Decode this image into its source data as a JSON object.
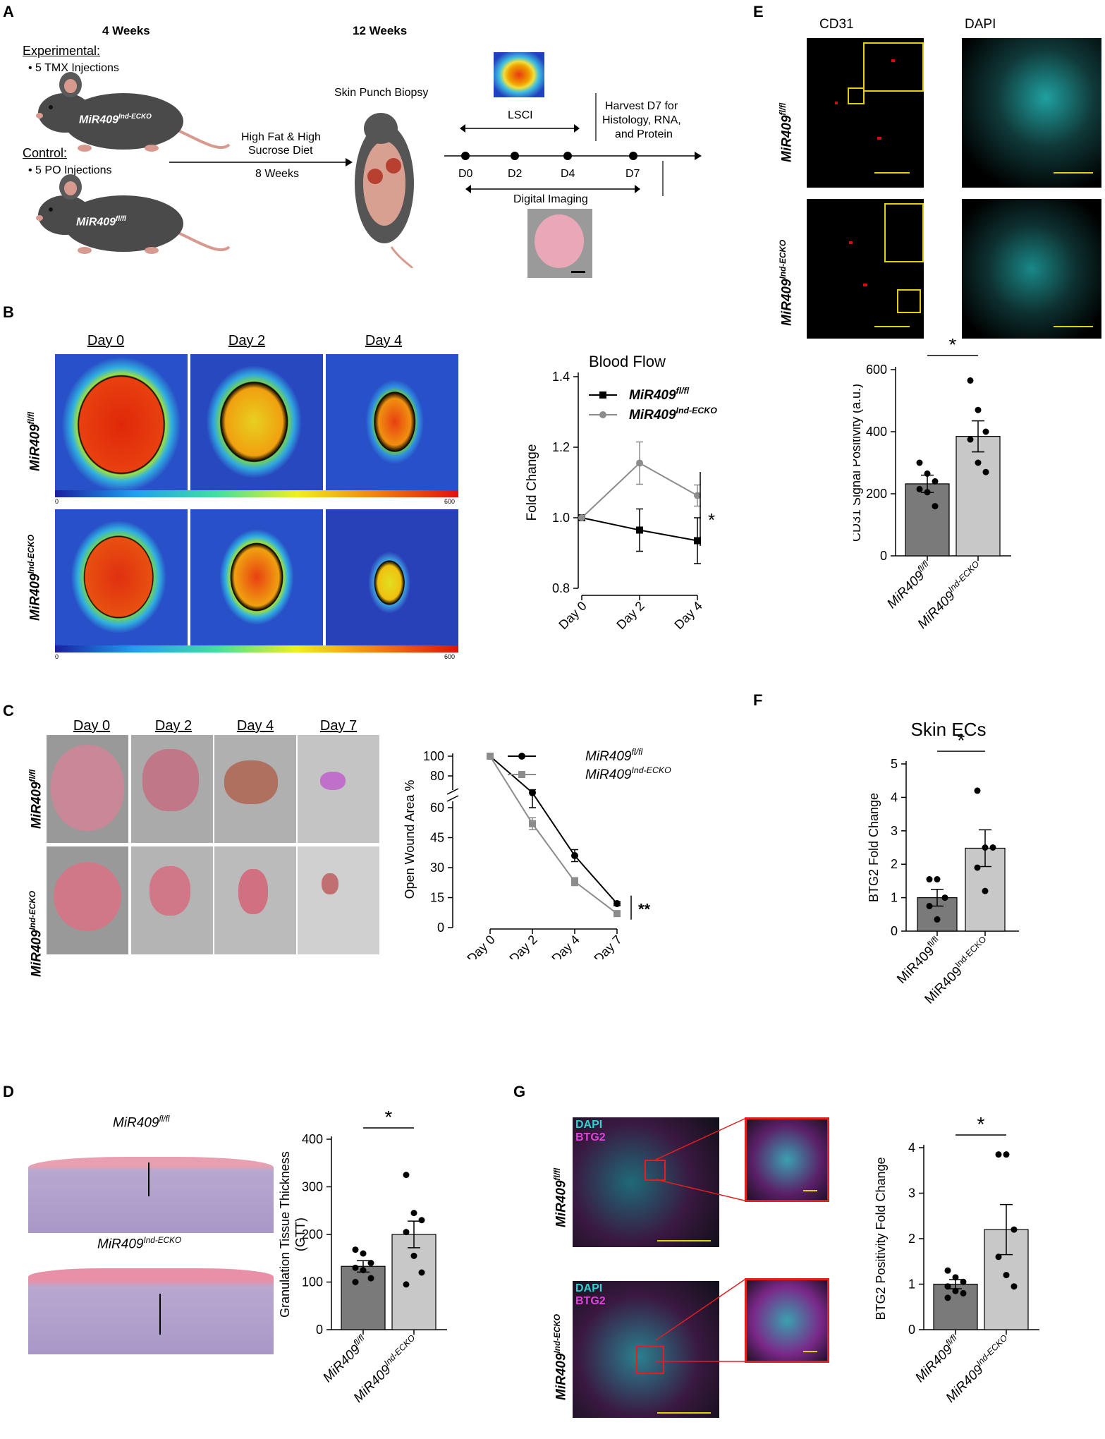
{
  "panels": {
    "A": "A",
    "B": "B",
    "C": "C",
    "D": "D",
    "E": "E",
    "F": "F",
    "G": "G"
  },
  "panelA": {
    "week4": "4 Weeks",
    "week12": "12 Weeks",
    "experimental": "Experimental:",
    "exp_bullet": "5 TMX Injections",
    "control": "Control:",
    "ctrl_bullet": "5 PO Injections",
    "mouse1_label": "MiR409",
    "mouse1_sup": "Ind-ECKO",
    "mouse2_label": "MiR409",
    "mouse2_sup": "fl/fl",
    "diet1": "High Fat & High",
    "diet2": "Sucrose Diet",
    "diet3": "8 Weeks",
    "biopsy": "Skin Punch Biopsy",
    "lsci": "LSCI",
    "harvest1": "Harvest D7 for",
    "harvest2": "Histology, RNA,",
    "harvest3": "and Protein",
    "d0": "D0",
    "d2": "D2",
    "d4": "D4",
    "d7": "D7",
    "digital": "Digital Imaging"
  },
  "panelB": {
    "days": [
      "Day 0",
      "Day 2",
      "Day 4"
    ],
    "row1": "MiR409",
    "row1_sup": "fl/fl",
    "row2": "MiR409",
    "row2_sup": "Ind-ECKO",
    "cb_min": "0",
    "cb_max": "600"
  },
  "panelC": {
    "days": [
      "Day 0",
      "Day 2",
      "Day 4",
      "Day 7"
    ],
    "row1": "MiR409",
    "row1_sup": "fl/fl",
    "row2": "MiR409",
    "row2_sup": "Ind-ECKO"
  },
  "panelD": {
    "row1": "MiR409",
    "row1_sup": "fl/fl",
    "row2": "MiR409",
    "row2_sup": "Ind-ECKO"
  },
  "panelE": {
    "col1": "CD31",
    "col2": "DAPI",
    "row1": "MiR409",
    "row1_sup": "fl/fl",
    "row2": "MiR409",
    "row2_sup": "Ind-ECKO"
  },
  "panelG": {
    "row1": "MiR409",
    "row1_sup": "fl/fl",
    "row2": "MiR409",
    "row2_sup": "Ind-ECKO",
    "dapi": "DAPI",
    "btg2": "BTG2"
  },
  "chart_data": [
    {
      "id": "B",
      "type": "line",
      "title": "Blood Flow",
      "ylabel": "Fold Change",
      "categories": [
        "Day 0",
        "Day 2",
        "Day 4"
      ],
      "ylim": [
        0.8,
        1.4
      ],
      "yticks": [
        "0.8",
        "1.0",
        "1.2",
        "1.4"
      ],
      "series": [
        {
          "name": "MiR409",
          "name_sup": "fl/fl",
          "color": "#000000",
          "marker": "square",
          "values": [
            1.0,
            0.965,
            0.935
          ],
          "err": [
            0,
            0.06,
            0.065
          ]
        },
        {
          "name": "MiR409",
          "name_sup": "Ind-ECKO",
          "color": "#8c8c8c",
          "marker": "circle",
          "values": [
            1.0,
            1.155,
            1.063
          ],
          "err": [
            0,
            0.06,
            0.03
          ]
        }
      ],
      "sig": "*"
    },
    {
      "id": "C",
      "type": "line",
      "ylabel": "Open Wound Area %",
      "categories": [
        "Day 0",
        "Day 2",
        "Day 4",
        "Day 7"
      ],
      "yticks": [
        "0",
        "15",
        "30",
        "45",
        "60",
        "80",
        "100"
      ],
      "series": [
        {
          "name": "MiR409",
          "name_sup": "fl/fl",
          "color": "#000000",
          "marker": "circle",
          "values": [
            100,
            63,
            36,
            12
          ],
          "err": [
            0,
            3,
            3,
            1
          ]
        },
        {
          "name": "MiR409",
          "name_sup": "Ind-ECKO",
          "color": "#8c8c8c",
          "marker": "square",
          "values": [
            100,
            52,
            23,
            7
          ],
          "err": [
            0,
            3,
            2,
            1
          ]
        }
      ],
      "sig": "**"
    },
    {
      "id": "E",
      "type": "bar",
      "ylabel": "CD31 Signal Positivity (a.u.)",
      "ylim": [
        0,
        600
      ],
      "yticks": [
        "0",
        "200",
        "400",
        "600"
      ],
      "categories": [
        "MiR409",
        "MiR409"
      ],
      "category_sup": [
        "fl/fl",
        "Ind-ECKO"
      ],
      "values": [
        232,
        385
      ],
      "err": [
        28,
        50
      ],
      "colors": [
        "#7a7a7a",
        "#c8c8c8"
      ],
      "points": [
        [
          300,
          265,
          240,
          215,
          205,
          160
        ],
        [
          565,
          470,
          400,
          375,
          300,
          270
        ]
      ],
      "sig": "*"
    },
    {
      "id": "F",
      "type": "bar",
      "title": "Skin ECs",
      "ylabel": "BTG2 Fold Change",
      "ylim": [
        0,
        5
      ],
      "yticks": [
        "0",
        "1",
        "2",
        "3",
        "4",
        "5"
      ],
      "categories": [
        "MiR409",
        "MiR409"
      ],
      "category_sup": [
        "fl/fl",
        "Ind-ECKO"
      ],
      "values": [
        1.0,
        2.48
      ],
      "err": [
        0.25,
        0.55
      ],
      "colors": [
        "#7a7a7a",
        "#c8c8c8"
      ],
      "points": [
        [
          1.55,
          1.55,
          1.0,
          0.75,
          0.35
        ],
        [
          4.2,
          2.5,
          2.5,
          1.9,
          1.2
        ]
      ],
      "sig": "*"
    },
    {
      "id": "D",
      "type": "bar",
      "ylabel": "Granulation Tissue Thickness",
      "ylabel2": "(GTT)",
      "ylim": [
        0,
        400
      ],
      "yticks": [
        "0",
        "100",
        "200",
        "300",
        "400"
      ],
      "categories": [
        "MiR409",
        "MiR409"
      ],
      "category_sup": [
        "fl/fl",
        "Ind-ECKO"
      ],
      "values": [
        133,
        200
      ],
      "err": [
        12,
        28
      ],
      "colors": [
        "#7a7a7a",
        "#c8c8c8"
      ],
      "points": [
        [
          168,
          160,
          140,
          130,
          125,
          108,
          100
        ],
        [
          325,
          245,
          230,
          205,
          155,
          120,
          95
        ]
      ],
      "sig": "*"
    },
    {
      "id": "G",
      "type": "bar",
      "ylabel": "BTG2 Positivity Fold Change",
      "ylim": [
        0,
        4
      ],
      "yticks": [
        "0",
        "1",
        "2",
        "3",
        "4"
      ],
      "categories": [
        "MiR409",
        "MiR409"
      ],
      "category_sup": [
        "fl/fl",
        "Ind-ECKO"
      ],
      "values": [
        1.0,
        2.2
      ],
      "err": [
        0.1,
        0.55
      ],
      "colors": [
        "#7a7a7a",
        "#c8c8c8"
      ],
      "points": [
        [
          1.3,
          1.15,
          1.05,
          0.95,
          0.85,
          0.8,
          0.7
        ],
        [
          3.85,
          3.85,
          2.2,
          1.6,
          1.2,
          0.95
        ]
      ],
      "sig": "*"
    }
  ]
}
